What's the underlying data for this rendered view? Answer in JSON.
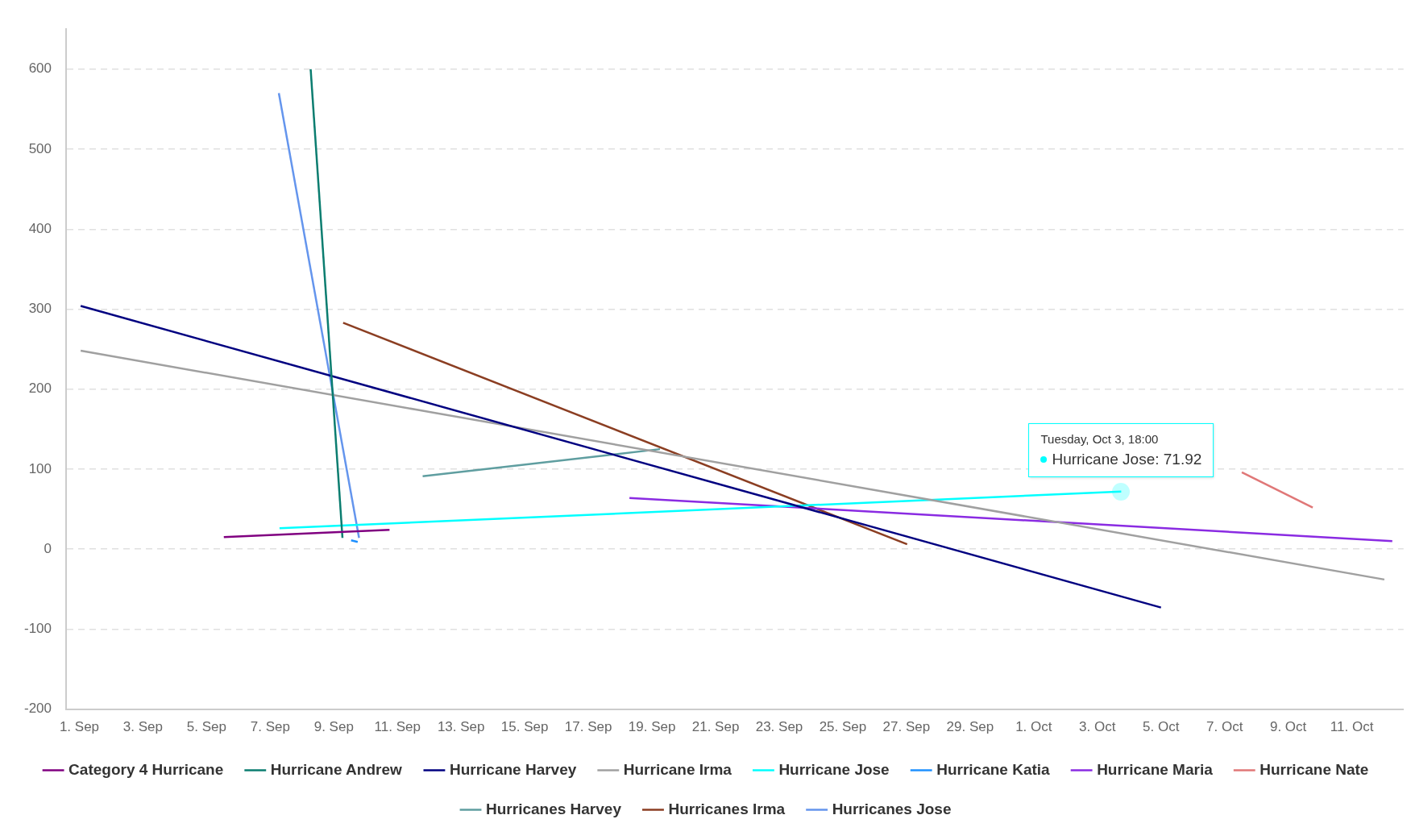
{
  "chart_data": {
    "type": "line",
    "xlim": [
      "--08-31T14:00",
      "--10-12T15:00"
    ],
    "ylim": [
      -200,
      650
    ],
    "yticks": [
      -200,
      -100,
      0,
      100,
      200,
      300,
      400,
      500,
      600
    ],
    "xticks": [
      {
        "value": "--09-01",
        "label": "1. Sep"
      },
      {
        "value": "--09-03",
        "label": "3. Sep"
      },
      {
        "value": "--09-05",
        "label": "5. Sep"
      },
      {
        "value": "--09-07",
        "label": "7. Sep"
      },
      {
        "value": "--09-09",
        "label": "9. Sep"
      },
      {
        "value": "--09-11",
        "label": "11. Sep"
      },
      {
        "value": "--09-13",
        "label": "13. Sep"
      },
      {
        "value": "--09-15",
        "label": "15. Sep"
      },
      {
        "value": "--09-17",
        "label": "17. Sep"
      },
      {
        "value": "--09-19",
        "label": "19. Sep"
      },
      {
        "value": "--09-21",
        "label": "21. Sep"
      },
      {
        "value": "--09-23",
        "label": "23. Sep"
      },
      {
        "value": "--09-25",
        "label": "25. Sep"
      },
      {
        "value": "--09-27",
        "label": "27. Sep"
      },
      {
        "value": "--09-29",
        "label": "29. Sep"
      },
      {
        "value": "--10-01",
        "label": "1. Oct"
      },
      {
        "value": "--10-03",
        "label": "3. Oct"
      },
      {
        "value": "--10-05",
        "label": "5. Oct"
      },
      {
        "value": "--10-07",
        "label": "7. Oct"
      },
      {
        "value": "--10-09",
        "label": "9. Oct"
      },
      {
        "value": "--10-11",
        "label": "11. Oct"
      }
    ],
    "grid": "y",
    "legend": "bottom",
    "line_style": "solid",
    "series": [
      {
        "name": "Category 4 Hurricane",
        "color": "#800080",
        "x": [
          "--09-05T13:00",
          "--09-10T18:00"
        ],
        "values": [
          15,
          24
        ]
      },
      {
        "name": "Hurricane Andrew",
        "color": "#0b7d70",
        "x": [
          "--09-08T06:30",
          "--09-09T06:30"
        ],
        "values": [
          600,
          14
        ]
      },
      {
        "name": "Hurricane Harvey",
        "color": "#000080",
        "x": [
          "--09-01T01:00",
          "--10-05T00:00"
        ],
        "values": [
          304,
          -73
        ]
      },
      {
        "name": "Hurricane Irma",
        "color": "#a0a0a0",
        "x": [
          "--09-01T01:00",
          "--10-12T00:30"
        ],
        "values": [
          248,
          -38
        ]
      },
      {
        "name": "Hurricane Jose",
        "color": "#00ffff",
        "x": [
          "--09-07T07:00",
          "--10-03T18:00"
        ],
        "values": [
          26,
          71.92
        ]
      },
      {
        "name": "Hurricane Katia",
        "color": "#1e90ff",
        "x": [
          "--09-09T13:00",
          "--09-09T18:00"
        ],
        "values": [
          11,
          9
        ]
      },
      {
        "name": "Hurricane Maria",
        "color": "#8a2be2",
        "x": [
          "--09-18T07:00",
          "--10-12T06:30"
        ],
        "values": [
          64,
          10
        ]
      },
      {
        "name": "Hurricane Nate",
        "color": "#e07777",
        "x": [
          "--10-07T13:00",
          "--10-09T18:30"
        ],
        "values": [
          96,
          52
        ]
      },
      {
        "name": "Hurricanes Harvey",
        "color": "#5f9ea0",
        "x": [
          "--09-11T19:00",
          "--09-19T06:00"
        ],
        "values": [
          91,
          125
        ]
      },
      {
        "name": "Hurricanes Irma",
        "color": "#8b3e22",
        "x": [
          "--09-09T07:00",
          "--09-27T00:30"
        ],
        "values": [
          283,
          6
        ]
      },
      {
        "name": "Hurricanes Jose",
        "color": "#6495ed",
        "x": [
          "--09-07T06:30",
          "--09-09T19:00"
        ],
        "values": [
          570,
          14
        ]
      }
    ],
    "annotations": [
      {
        "text": "Tuesday, Oct 3, 18:00\nHurricane Jose: 71.92",
        "x": "--10-03T18:00",
        "y": 71.92
      }
    ]
  }
}
